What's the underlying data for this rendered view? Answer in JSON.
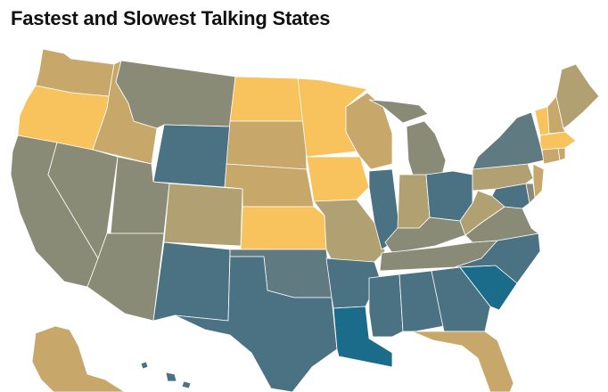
{
  "title": "Fastest and Slowest Talking States",
  "colors": {
    "fastest": "#f8c25c",
    "fast": "#c7a76a",
    "mid_fast": "#b0a072",
    "neutral": "#8a8b76",
    "mid_slow": "#5f7a80",
    "slow": "#4a7283",
    "slowest": "#1b6c8a"
  },
  "states": [
    {
      "id": "WA",
      "tier": "fast"
    },
    {
      "id": "OR",
      "tier": "fastest"
    },
    {
      "id": "CA",
      "tier": "neutral"
    },
    {
      "id": "ID",
      "tier": "fast"
    },
    {
      "id": "NV",
      "tier": "neutral"
    },
    {
      "id": "MT",
      "tier": "neutral"
    },
    {
      "id": "WY",
      "tier": "slow"
    },
    {
      "id": "UT",
      "tier": "neutral"
    },
    {
      "id": "AZ",
      "tier": "neutral"
    },
    {
      "id": "CO",
      "tier": "mid_fast"
    },
    {
      "id": "NM",
      "tier": "slow"
    },
    {
      "id": "ND",
      "tier": "fastest"
    },
    {
      "id": "SD",
      "tier": "fast"
    },
    {
      "id": "NE",
      "tier": "fast"
    },
    {
      "id": "KS",
      "tier": "fastest"
    },
    {
      "id": "OK",
      "tier": "mid_slow"
    },
    {
      "id": "TX",
      "tier": "slow"
    },
    {
      "id": "MN",
      "tier": "fastest"
    },
    {
      "id": "IA",
      "tier": "fastest"
    },
    {
      "id": "MO",
      "tier": "mid_fast"
    },
    {
      "id": "AR",
      "tier": "slow"
    },
    {
      "id": "LA",
      "tier": "slowest"
    },
    {
      "id": "WI",
      "tier": "fast"
    },
    {
      "id": "IL",
      "tier": "slow"
    },
    {
      "id": "MI",
      "tier": "neutral"
    },
    {
      "id": "IN",
      "tier": "mid_fast"
    },
    {
      "id": "OH",
      "tier": "slow"
    },
    {
      "id": "KY",
      "tier": "neutral"
    },
    {
      "id": "TN",
      "tier": "neutral"
    },
    {
      "id": "MS",
      "tier": "slow"
    },
    {
      "id": "AL",
      "tier": "slow"
    },
    {
      "id": "GA",
      "tier": "slow"
    },
    {
      "id": "FL",
      "tier": "fast"
    },
    {
      "id": "SC",
      "tier": "slowest"
    },
    {
      "id": "NC",
      "tier": "slow"
    },
    {
      "id": "VA",
      "tier": "neutral"
    },
    {
      "id": "WV",
      "tier": "mid_fast"
    },
    {
      "id": "MD",
      "tier": "slow"
    },
    {
      "id": "DE",
      "tier": "neutral"
    },
    {
      "id": "PA",
      "tier": "mid_fast"
    },
    {
      "id": "NJ",
      "tier": "fast"
    },
    {
      "id": "NY",
      "tier": "mid_slow"
    },
    {
      "id": "CT",
      "tier": "fast"
    },
    {
      "id": "RI",
      "tier": "fast"
    },
    {
      "id": "MA",
      "tier": "fastest"
    },
    {
      "id": "VT",
      "tier": "fastest"
    },
    {
      "id": "NH",
      "tier": "fast"
    },
    {
      "id": "ME",
      "tier": "mid_fast"
    },
    {
      "id": "AK",
      "tier": "fast"
    },
    {
      "id": "HI",
      "tier": "slow"
    }
  ]
}
